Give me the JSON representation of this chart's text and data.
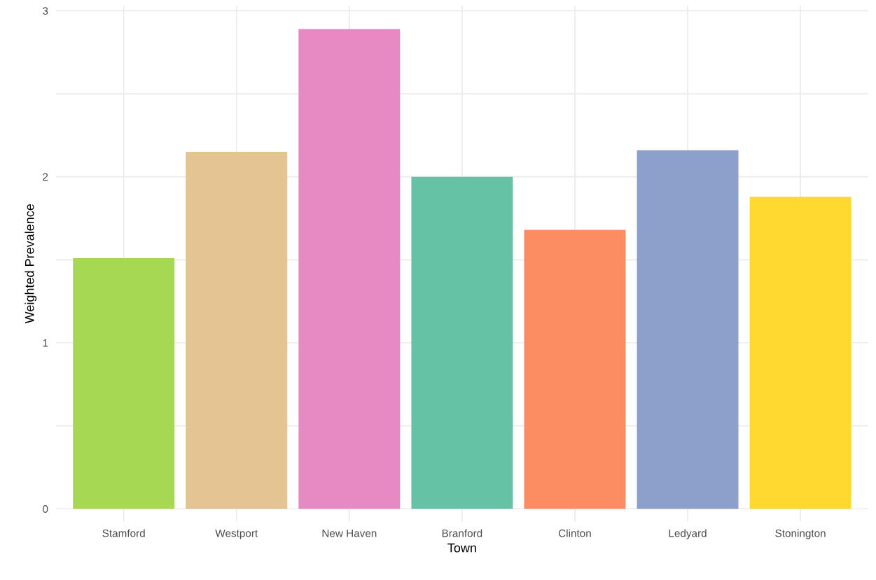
{
  "chart_data": {
    "type": "bar",
    "xlabel": "Town",
    "ylabel": "Weighted Prevalence",
    "categories": [
      "Stamford",
      "Westport",
      "New Haven",
      "Branford",
      "Clinton",
      "Ledyard",
      "Stonington"
    ],
    "values": [
      1.51,
      2.15,
      2.89,
      2.0,
      1.68,
      2.16,
      1.88
    ],
    "colors": [
      "#a6d854",
      "#e5c494",
      "#e78ac3",
      "#66c2a5",
      "#fc8d62",
      "#8da0cb",
      "#ffd92f"
    ],
    "ylim": [
      -0.076,
      3.03
    ],
    "yticks": [
      0,
      {
        "value": 0.5,
        "label": null
      },
      1,
      {
        "value": 1.5,
        "label": null
      },
      2,
      {
        "value": 2.5,
        "label": null
      },
      3
    ],
    "grid": true
  }
}
